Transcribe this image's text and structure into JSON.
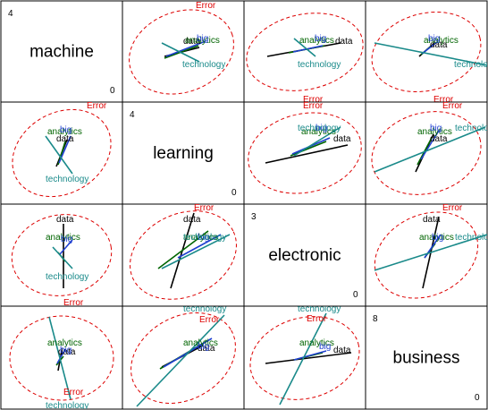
{
  "chart_data": {
    "type": "biplot-matrix",
    "variables": [
      {
        "name": "machine",
        "top_value": "4",
        "bottom_value": "0"
      },
      {
        "name": "learning",
        "top_value": "4",
        "bottom_value": "0"
      },
      {
        "name": "electronic",
        "top_value": "3",
        "bottom_value": "0"
      },
      {
        "name": "business",
        "top_value": "8",
        "bottom_value": "0"
      }
    ],
    "ellipse_label": "Error",
    "terms": [
      {
        "label": "data",
        "color": "#000000"
      },
      {
        "label": "analytics",
        "color": "#006400"
      },
      {
        "label": "big",
        "color": "#1f3fd0"
      },
      {
        "label": "technology",
        "color": "#1a8a8a"
      }
    ],
    "grid": false,
    "legend": "none"
  },
  "colors": {
    "ellipse": "#dd0000",
    "border": "#000000",
    "background": "#ffffff"
  }
}
